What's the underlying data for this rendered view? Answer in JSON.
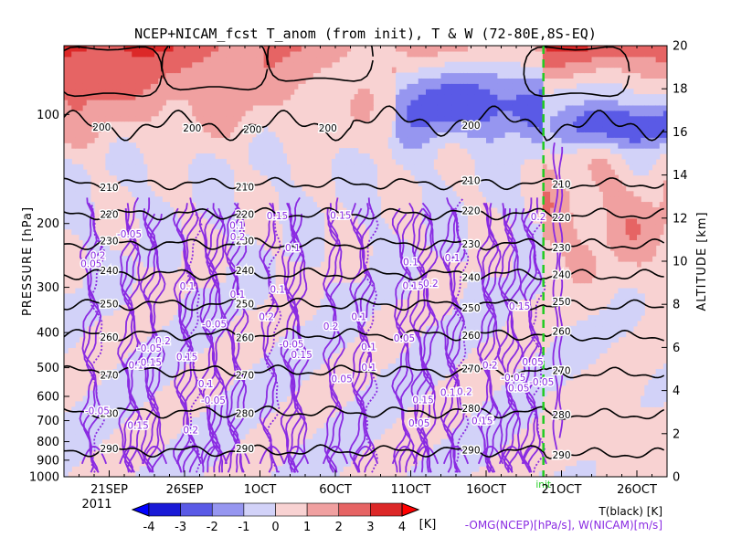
{
  "chart_data": {
    "type": "heatmap",
    "title": "NCEP+NICAM_fcst T_anom (from init), T & W  (72-80E,8S-EQ)",
    "ylabel_left": "PRESSURE [hPa]",
    "ylabel_right": "ALTITUDE [km]",
    "x_ticks": [
      "21SEP",
      "26SEP",
      "1OCT",
      "6OCT",
      "11OCT",
      "16OCT",
      "21OCT",
      "26OCT"
    ],
    "x_tick_days": [
      3,
      8,
      13,
      18,
      23,
      28,
      33,
      38
    ],
    "x_range_days": [
      0,
      40
    ],
    "year_label": "2011",
    "init_day": 31.8,
    "init_label": "init",
    "y_left_ticks": [
      100,
      200,
      300,
      400,
      500,
      600,
      700,
      800,
      900,
      1000
    ],
    "y_left_range_hpa": [
      1000,
      50
    ],
    "y_right_ticks": [
      0,
      2,
      4,
      6,
      8,
      10,
      12,
      14,
      16,
      18,
      20
    ],
    "y_right_range_km": [
      0,
      20
    ],
    "colorbar": {
      "levels": [
        -4,
        -3,
        -2,
        -1,
        0,
        1,
        2,
        3,
        4
      ],
      "tick_labels": [
        "-4",
        "-3",
        "-2",
        "-1",
        "0",
        "1",
        "2",
        "3",
        "4"
      ],
      "colors": [
        "#1a1ad6",
        "#5a5ae6",
        "#9696f0",
        "#d2d2f8",
        "#f8d2d2",
        "#f0a0a0",
        "#e66464",
        "#dc2828"
      ],
      "unit": "[K]"
    },
    "temperature_contours_K": [
      {
        "label": "200",
        "z_km": 16.3
      },
      {
        "label": "210",
        "z_km": 13.6
      },
      {
        "label": "220",
        "z_km": 12.2
      },
      {
        "label": "230",
        "z_km": 10.8
      },
      {
        "label": "240",
        "z_km": 9.4
      },
      {
        "label": "250",
        "z_km": 8.0
      },
      {
        "label": "260",
        "z_km": 6.6
      },
      {
        "label": "270",
        "z_km": 4.9
      },
      {
        "label": "280",
        "z_km": 3.0
      },
      {
        "label": "290",
        "z_km": 1.2
      }
    ],
    "w_contour_labels": [
      "0.05",
      "0.1",
      "0.15",
      "0.2",
      "-0.05"
    ],
    "legend_t": "T(black) [K]",
    "legend_w": "-OMG(NCEP)[hPa/s], W(NICAM)[m/s]",
    "colors": {
      "t_line": "#000000",
      "w_line": "#8a2be2",
      "init_line": "#22cc22"
    }
  }
}
